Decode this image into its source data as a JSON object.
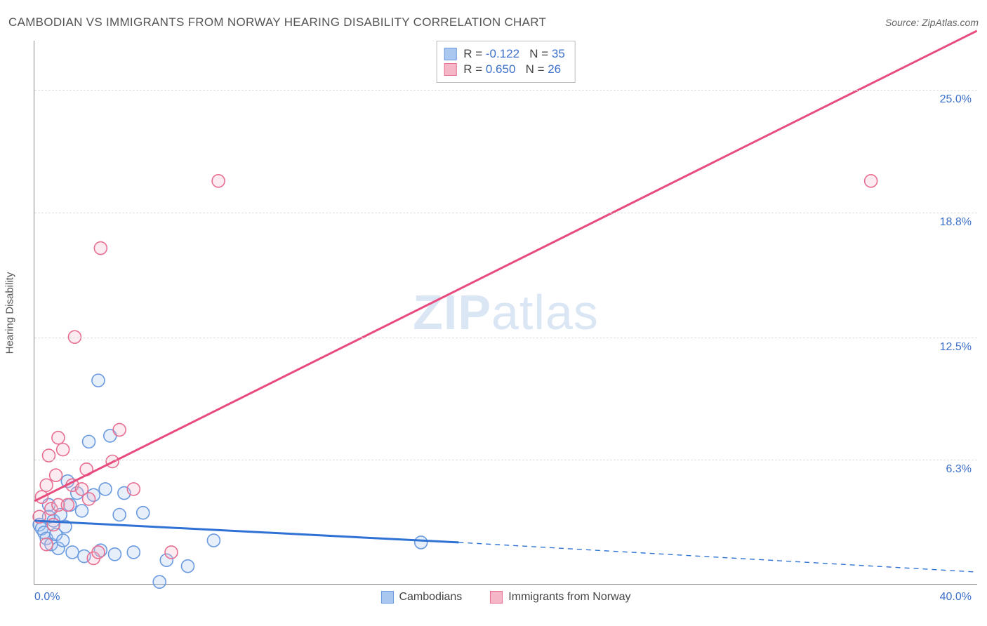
{
  "header": {
    "title": "CAMBODIAN VS IMMIGRANTS FROM NORWAY HEARING DISABILITY CORRELATION CHART",
    "source_prefix": "Source: ",
    "source_name": "ZipAtlas.com"
  },
  "axes": {
    "y_label": "Hearing Disability",
    "x_min": 0.0,
    "x_max": 40.0,
    "y_min": 0.0,
    "y_max": 27.5,
    "x_tick_left": "0.0%",
    "x_tick_right": "40.0%",
    "y_ticks": [
      {
        "v": 6.3,
        "label": "6.3%"
      },
      {
        "v": 12.5,
        "label": "12.5%"
      },
      {
        "v": 18.8,
        "label": "18.8%"
      },
      {
        "v": 25.0,
        "label": "25.0%"
      }
    ]
  },
  "watermark": {
    "zip": "ZIP",
    "atlas": "atlas"
  },
  "series": [
    {
      "key": "cambodians",
      "label": "Cambodians",
      "color_stroke": "#6a9ae0",
      "color_fill": "#aac7ef",
      "line_color": "#2f72d4",
      "R": "-0.122",
      "N": "35",
      "trend": {
        "x1": 0.0,
        "y1": 3.2,
        "x2": 18.0,
        "y2": 2.1,
        "dash_x2": 40.0,
        "dash_y2": 0.6
      },
      "points": [
        {
          "x": 0.2,
          "y": 3.0
        },
        {
          "x": 0.3,
          "y": 2.8
        },
        {
          "x": 0.4,
          "y": 2.6
        },
        {
          "x": 0.5,
          "y": 2.3
        },
        {
          "x": 0.6,
          "y": 3.4
        },
        {
          "x": 0.7,
          "y": 2.0
        },
        {
          "x": 0.8,
          "y": 3.2
        },
        {
          "x": 0.9,
          "y": 2.5
        },
        {
          "x": 1.0,
          "y": 1.8
        },
        {
          "x": 1.1,
          "y": 3.5
        },
        {
          "x": 1.2,
          "y": 2.2
        },
        {
          "x": 1.3,
          "y": 2.9
        },
        {
          "x": 1.5,
          "y": 4.0
        },
        {
          "x": 1.6,
          "y": 1.6
        },
        {
          "x": 1.8,
          "y": 4.6
        },
        {
          "x": 2.0,
          "y": 3.7
        },
        {
          "x": 2.1,
          "y": 1.4
        },
        {
          "x": 2.3,
          "y": 7.2
        },
        {
          "x": 2.5,
          "y": 4.5
        },
        {
          "x": 2.7,
          "y": 10.3
        },
        {
          "x": 2.8,
          "y": 1.7
        },
        {
          "x": 3.0,
          "y": 4.8
        },
        {
          "x": 3.2,
          "y": 7.5
        },
        {
          "x": 3.4,
          "y": 1.5
        },
        {
          "x": 3.6,
          "y": 3.5
        },
        {
          "x": 3.8,
          "y": 4.6
        },
        {
          "x": 4.2,
          "y": 1.6
        },
        {
          "x": 4.6,
          "y": 3.6
        },
        {
          "x": 5.3,
          "y": 0.1
        },
        {
          "x": 5.6,
          "y": 1.2
        },
        {
          "x": 6.5,
          "y": 0.9
        },
        {
          "x": 7.6,
          "y": 2.2
        },
        {
          "x": 16.4,
          "y": 2.1
        },
        {
          "x": 1.4,
          "y": 5.2
        },
        {
          "x": 0.6,
          "y": 4.0
        }
      ]
    },
    {
      "key": "norway",
      "label": "Immigrants from Norway",
      "color_stroke": "#e76f92",
      "color_fill": "#f5b6c8",
      "line_color": "#e84b7d",
      "R": "0.650",
      "N": "26",
      "trend": {
        "x1": 0.0,
        "y1": 4.2,
        "x2": 40.0,
        "y2": 28.0
      },
      "points": [
        {
          "x": 0.2,
          "y": 3.4
        },
        {
          "x": 0.3,
          "y": 4.4
        },
        {
          "x": 0.5,
          "y": 5.0
        },
        {
          "x": 0.6,
          "y": 6.5
        },
        {
          "x": 0.7,
          "y": 3.8
        },
        {
          "x": 0.9,
          "y": 5.5
        },
        {
          "x": 1.0,
          "y": 4.0
        },
        {
          "x": 1.2,
          "y": 6.8
        },
        {
          "x": 1.4,
          "y": 4.0
        },
        {
          "x": 1.6,
          "y": 5.0
        },
        {
          "x": 1.7,
          "y": 12.5
        },
        {
          "x": 2.0,
          "y": 4.8
        },
        {
          "x": 2.2,
          "y": 5.8
        },
        {
          "x": 2.5,
          "y": 1.3
        },
        {
          "x": 2.7,
          "y": 1.6
        },
        {
          "x": 3.3,
          "y": 6.2
        },
        {
          "x": 3.6,
          "y": 7.8
        },
        {
          "x": 2.8,
          "y": 17.0
        },
        {
          "x": 4.2,
          "y": 4.8
        },
        {
          "x": 5.8,
          "y": 1.6
        },
        {
          "x": 1.0,
          "y": 7.4
        },
        {
          "x": 0.5,
          "y": 2.0
        },
        {
          "x": 7.8,
          "y": 20.4
        },
        {
          "x": 35.5,
          "y": 20.4
        },
        {
          "x": 2.3,
          "y": 4.3
        },
        {
          "x": 0.8,
          "y": 3.0
        }
      ]
    }
  ],
  "style": {
    "marker_radius": 9,
    "trend_width": 3,
    "bg": "#ffffff",
    "grid_color": "#dddddd",
    "axis_color": "#888888",
    "tick_color": "#3b6fc9",
    "swatch_size": 18
  }
}
